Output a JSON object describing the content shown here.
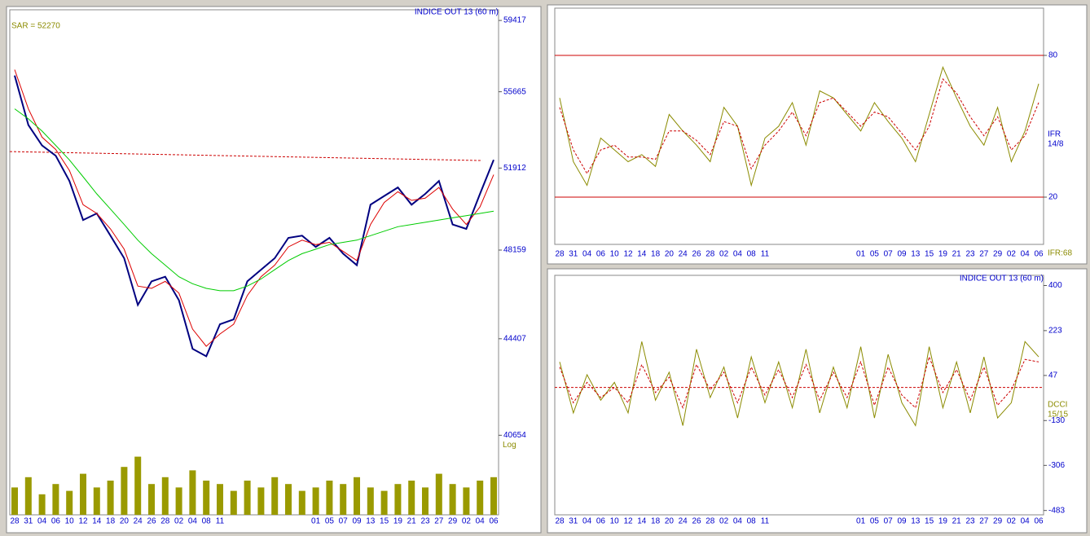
{
  "chart_data": [
    {
      "type": "line",
      "title": "INDICE OUT 13 (60 m)",
      "annotation": "SAR = 52270",
      "scale_label": "Log",
      "log_scale": true,
      "ylim": [
        37800,
        60000
      ],
      "yticks": [
        59417,
        55665,
        51912,
        48159,
        44407,
        40654
      ],
      "categories": [
        "28",
        "31",
        "04",
        "06",
        "10",
        "12",
        "14",
        "18",
        "20",
        "24",
        "26",
        "28",
        "02",
        "04",
        "08",
        "11",
        null,
        null,
        null,
        null,
        null,
        null,
        "01",
        "05",
        "07",
        "09",
        "13",
        "15",
        "19",
        "21",
        "23",
        "27",
        "29",
        "02",
        "04",
        "06"
      ],
      "series": [
        {
          "color": "#000080",
          "values": [
            56500,
            54000,
            53000,
            52500,
            51300,
            49500,
            49800,
            48800,
            47800,
            45800,
            46800,
            47000,
            46000,
            44000,
            43700,
            45000,
            45200,
            46800,
            47300,
            47800,
            48700,
            48800,
            48300,
            48700,
            48000,
            47500,
            50200,
            50600,
            51000,
            50200,
            50700,
            51300,
            49300,
            49100,
            50700,
            52300
          ]
        },
        {
          "color": "#dd0000",
          "values": [
            56800,
            54800,
            53400,
            52800,
            51800,
            50200,
            49800,
            49100,
            48200,
            46600,
            46500,
            46800,
            46300,
            44800,
            44100,
            44600,
            45000,
            46200,
            47000,
            47500,
            48300,
            48600,
            48400,
            48500,
            48100,
            47700,
            49300,
            50300,
            50800,
            50400,
            50500,
            51000,
            50000,
            49300,
            50100,
            51600
          ]
        },
        {
          "color": "#00cc00",
          "values": [
            54800,
            54300,
            53700,
            53000,
            52300,
            51500,
            50700,
            50000,
            49300,
            48600,
            48000,
            47500,
            47000,
            46700,
            46500,
            46400,
            46400,
            46600,
            46900,
            47300,
            47700,
            48000,
            48200,
            48400,
            48500,
            48600,
            48800,
            49000,
            49200,
            49300,
            49400,
            49500,
            49600,
            49700,
            49800,
            49900
          ]
        }
      ],
      "sar_line": {
        "color": "#cc0000",
        "values": [
          52700,
          52270
        ]
      },
      "volume": {
        "color": "#9a9a00",
        "max": 100,
        "values": [
          40,
          55,
          30,
          45,
          35,
          60,
          40,
          50,
          70,
          85,
          45,
          55,
          40,
          65,
          50,
          45,
          35,
          50,
          40,
          55,
          45,
          35,
          40,
          50,
          45,
          55,
          40,
          35,
          45,
          50,
          40,
          60,
          45,
          40,
          50,
          55
        ]
      }
    },
    {
      "type": "oscillator",
      "label": "IFR",
      "params": "14/8",
      "readout": "IFR:68",
      "ylim": [
        0,
        100
      ],
      "yticks": [
        20,
        80
      ],
      "grid": true,
      "grid_color": "#cc0000",
      "categories": [
        "28",
        "31",
        "04",
        "06",
        "10",
        "12",
        "14",
        "18",
        "20",
        "24",
        "26",
        "28",
        "02",
        "04",
        "08",
        "11",
        null,
        null,
        null,
        null,
        null,
        null,
        "01",
        "05",
        "07",
        "09",
        "13",
        "15",
        "19",
        "21",
        "23",
        "27",
        "29",
        "02",
        "04",
        "06"
      ],
      "series": [
        {
          "color": "#8b8b00",
          "values": [
            62,
            35,
            25,
            45,
            40,
            35,
            38,
            33,
            55,
            48,
            42,
            35,
            58,
            50,
            25,
            45,
            50,
            60,
            42,
            65,
            62,
            55,
            48,
            60,
            52,
            45,
            35,
            55,
            75,
            62,
            50,
            42,
            58,
            35,
            48,
            68
          ]
        },
        {
          "color": "#cc0000",
          "dashed": true,
          "values": [
            58,
            40,
            30,
            40,
            42,
            37,
            37,
            36,
            48,
            48,
            44,
            38,
            52,
            50,
            32,
            42,
            48,
            56,
            46,
            60,
            62,
            56,
            50,
            56,
            54,
            47,
            40,
            50,
            70,
            64,
            54,
            46,
            54,
            40,
            46,
            60
          ]
        }
      ]
    },
    {
      "type": "oscillator",
      "title": "INDICE OUT 13 (60 m)",
      "label": "DCCI",
      "params": "15/15",
      "ylim": [
        -500,
        440
      ],
      "yticks": [
        400,
        223,
        47,
        -130,
        -306,
        -483
      ],
      "reference_line": {
        "value": 0,
        "color": "#cc0000"
      },
      "categories": [
        "28",
        "31",
        "04",
        "06",
        "10",
        "12",
        "14",
        "18",
        "20",
        "24",
        "26",
        "28",
        "02",
        "04",
        "08",
        "11",
        null,
        null,
        null,
        null,
        null,
        null,
        "01",
        "05",
        "07",
        "09",
        "13",
        "15",
        "19",
        "21",
        "23",
        "27",
        "29",
        "02",
        "04",
        "06"
      ],
      "series": [
        {
          "color": "#8b8b00",
          "values": [
            100,
            -100,
            50,
            -50,
            20,
            -100,
            180,
            -50,
            60,
            -150,
            150,
            -40,
            80,
            -120,
            120,
            -60,
            100,
            -80,
            150,
            -100,
            80,
            -80,
            160,
            -120,
            130,
            -60,
            -150,
            160,
            -80,
            100,
            -100,
            120,
            -120,
            -60,
            180,
            120
          ]
        },
        {
          "color": "#cc0000",
          "dashed": true,
          "values": [
            80,
            -60,
            20,
            -40,
            0,
            -60,
            90,
            -20,
            40,
            -80,
            90,
            -10,
            60,
            -60,
            80,
            -30,
            70,
            -40,
            90,
            -50,
            60,
            -40,
            100,
            -70,
            80,
            -30,
            -80,
            120,
            -20,
            70,
            -50,
            80,
            -70,
            -10,
            110,
            100
          ]
        }
      ]
    }
  ]
}
